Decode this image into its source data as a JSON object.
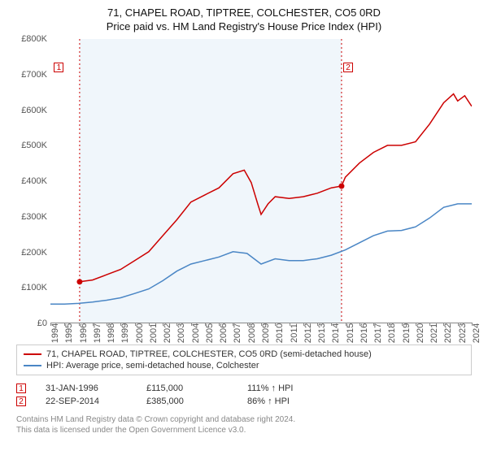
{
  "title_line1": "71, CHAPEL ROAD, TIPTREE, COLCHESTER, CO5 0RD",
  "title_line2": "Price paid vs. HM Land Registry's House Price Index (HPI)",
  "chart": {
    "type": "line",
    "x_min": 1994,
    "x_max": 2024,
    "y_min": 0,
    "y_max": 800000,
    "x_ticks": [
      1994,
      1995,
      1996,
      1997,
      1998,
      1999,
      2000,
      2001,
      2002,
      2003,
      2004,
      2005,
      2006,
      2007,
      2008,
      2009,
      2010,
      2011,
      2012,
      2013,
      2014,
      2015,
      2016,
      2017,
      2018,
      2019,
      2020,
      2021,
      2022,
      2023,
      2024
    ],
    "y_ticks": [
      0,
      100000,
      200000,
      300000,
      400000,
      500000,
      600000,
      700000,
      800000
    ],
    "y_tick_labels": [
      "£0",
      "£100K",
      "£200K",
      "£300K",
      "£400K",
      "£500K",
      "£600K",
      "£700K",
      "£800K"
    ],
    "background_color": "#ffffff",
    "shaded_band": {
      "x_start": 1996.08,
      "x_end": 2014.73,
      "fill": "#f0f6fb"
    },
    "series": [
      {
        "name": "price_paid",
        "color": "#cc0000",
        "width": 1.5,
        "label": "71, CHAPEL ROAD, TIPTREE, COLCHESTER, CO5 0RD (semi-detached house)",
        "points": [
          [
            1996.08,
            115000
          ],
          [
            1997,
            120000
          ],
          [
            1998,
            135000
          ],
          [
            1999,
            150000
          ],
          [
            2000,
            175000
          ],
          [
            2001,
            200000
          ],
          [
            2002,
            245000
          ],
          [
            2003,
            290000
          ],
          [
            2004,
            340000
          ],
          [
            2005,
            360000
          ],
          [
            2006,
            380000
          ],
          [
            2007,
            420000
          ],
          [
            2007.8,
            430000
          ],
          [
            2008.3,
            395000
          ],
          [
            2008.8,
            330000
          ],
          [
            2009,
            305000
          ],
          [
            2009.5,
            335000
          ],
          [
            2010,
            355000
          ],
          [
            2011,
            350000
          ],
          [
            2012,
            355000
          ],
          [
            2013,
            365000
          ],
          [
            2014,
            380000
          ],
          [
            2014.73,
            385000
          ],
          [
            2015,
            410000
          ],
          [
            2016,
            450000
          ],
          [
            2017,
            480000
          ],
          [
            2018,
            500000
          ],
          [
            2019,
            500000
          ],
          [
            2020,
            510000
          ],
          [
            2021,
            560000
          ],
          [
            2022,
            620000
          ],
          [
            2022.7,
            645000
          ],
          [
            2023,
            625000
          ],
          [
            2023.5,
            640000
          ],
          [
            2024,
            610000
          ]
        ]
      },
      {
        "name": "hpi",
        "color": "#4a86c5",
        "width": 1.4,
        "label": "HPI: Average price, semi-detached house, Colchester",
        "points": [
          [
            1994,
            52000
          ],
          [
            1995,
            52000
          ],
          [
            1996,
            54000
          ],
          [
            1997,
            58000
          ],
          [
            1998,
            63000
          ],
          [
            1999,
            70000
          ],
          [
            2000,
            82000
          ],
          [
            2001,
            95000
          ],
          [
            2002,
            118000
          ],
          [
            2003,
            145000
          ],
          [
            2004,
            165000
          ],
          [
            2005,
            175000
          ],
          [
            2006,
            185000
          ],
          [
            2007,
            200000
          ],
          [
            2008,
            195000
          ],
          [
            2009,
            165000
          ],
          [
            2010,
            180000
          ],
          [
            2011,
            175000
          ],
          [
            2012,
            175000
          ],
          [
            2013,
            180000
          ],
          [
            2014,
            190000
          ],
          [
            2015,
            205000
          ],
          [
            2016,
            225000
          ],
          [
            2017,
            245000
          ],
          [
            2018,
            258000
          ],
          [
            2019,
            260000
          ],
          [
            2020,
            270000
          ],
          [
            2021,
            295000
          ],
          [
            2022,
            325000
          ],
          [
            2023,
            335000
          ],
          [
            2024,
            335000
          ]
        ]
      }
    ],
    "markers": [
      {
        "id": "1",
        "x": 1996.08,
        "y": 115000,
        "line_color": "#cc0000",
        "box_x": 1994.6,
        "box_y": 720000
      },
      {
        "id": "2",
        "x": 2014.73,
        "y": 385000,
        "line_color": "#cc0000",
        "box_x": 2015.2,
        "box_y": 720000
      }
    ],
    "point_markers": [
      {
        "x": 1996.08,
        "y": 115000,
        "color": "#cc0000"
      },
      {
        "x": 2014.73,
        "y": 385000,
        "color": "#cc0000"
      }
    ]
  },
  "legend": {
    "items_key": "chart.series"
  },
  "events": [
    {
      "marker": "1",
      "color": "#cc0000",
      "date": "31-JAN-1996",
      "price": "£115,000",
      "pct": "111% ↑ HPI"
    },
    {
      "marker": "2",
      "color": "#cc0000",
      "date": "22-SEP-2014",
      "price": "£385,000",
      "pct": "86% ↑ HPI"
    }
  ],
  "footnote_line1": "Contains HM Land Registry data © Crown copyright and database right 2024.",
  "footnote_line2": "This data is licensed under the Open Government Licence v3.0."
}
